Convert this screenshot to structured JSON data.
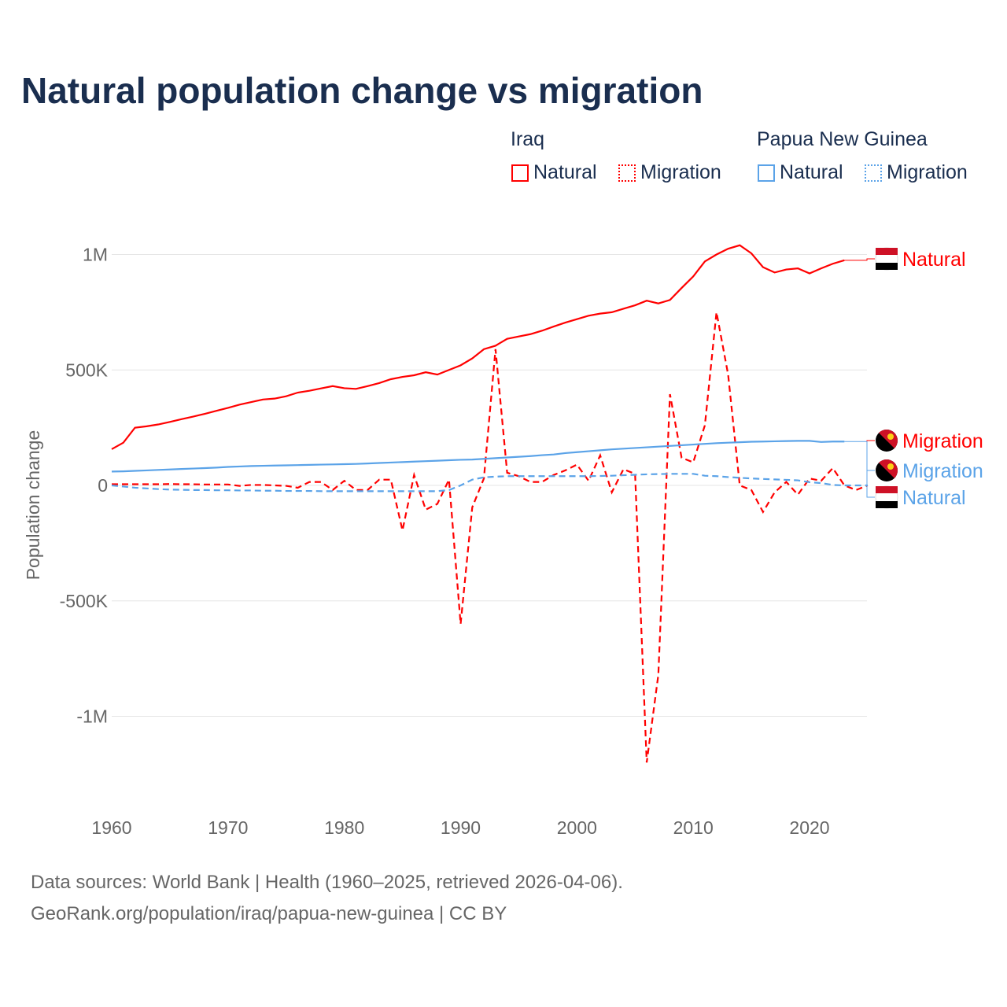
{
  "title": "Natural population change vs migration",
  "legend": {
    "groups": [
      {
        "name": "Iraq",
        "items": [
          "Natural",
          "Migration"
        ]
      },
      {
        "name": "Papua New Guinea",
        "items": [
          "Natural",
          "Migration"
        ]
      }
    ]
  },
  "colors": {
    "iraq": "#ff0000",
    "png": "#5ba3e8",
    "grid": "#e6e6e6",
    "text": "#1a2e4f"
  },
  "footer": {
    "line1": "Data sources: World Bank | Health (1960–2025, retrieved 2026-04-06).",
    "line2": "GeoRank.org/population/iraq/papua-new-guinea | CC BY"
  },
  "chart_data": {
    "type": "line",
    "title": "Natural population change vs migration",
    "xlabel": "",
    "ylabel": "Population change",
    "xlim": [
      1960,
      2025
    ],
    "ylim": [
      -1200000,
      1050000
    ],
    "x_ticks": [
      1960,
      1970,
      1980,
      1990,
      2000,
      2010,
      2020
    ],
    "y_ticks": [
      {
        "v": 1000000,
        "label": "1M"
      },
      {
        "v": 500000,
        "label": "500K"
      },
      {
        "v": 0,
        "label": "0"
      },
      {
        "v": -500000,
        "label": "-500K"
      },
      {
        "v": -1000000,
        "label": "-1M"
      }
    ],
    "units": "thousands",
    "series": [
      {
        "name": "Iraq Natural",
        "end_label": "Natural",
        "color": "#ff0000",
        "dash": false,
        "start": 1960,
        "values": [
          157,
          185,
          250,
          256,
          264,
          275,
          287,
          298,
          310,
          323,
          336,
          350,
          361,
          372,
          376,
          386,
          402,
          410,
          420,
          430,
          421,
          418,
          430,
          443,
          460,
          470,
          477,
          490,
          480,
          500,
          520,
          550,
          590,
          605,
          635,
          645,
          655,
          670,
          688,
          705,
          720,
          735,
          744,
          750,
          765,
          780,
          800,
          788,
          803,
          855,
          905,
          970,
          1000,
          1025,
          1040,
          1005,
          945,
          922,
          935,
          940,
          918,
          940,
          960,
          975
        ]
      },
      {
        "name": "Iraq Migration",
        "end_label": "Migration",
        "color": "#ff0000",
        "dash": true,
        "start": 1960,
        "values": [
          5,
          5,
          5,
          5,
          5,
          6,
          5,
          5,
          4,
          4,
          4,
          -2,
          2,
          2,
          0,
          -2,
          -10,
          15,
          15,
          -20,
          20,
          -20,
          -20,
          25,
          25,
          -195,
          45,
          -105,
          -80,
          25,
          -600,
          -95,
          30,
          590,
          55,
          40,
          15,
          15,
          45,
          65,
          90,
          20,
          130,
          -30,
          70,
          50,
          -1200,
          -820,
          395,
          120,
          100,
          260,
          750,
          480,
          0,
          -20,
          -115,
          -30,
          15,
          -40,
          30,
          20,
          75,
          0,
          -20,
          0
        ]
      },
      {
        "name": "Papua New Guinea Natural",
        "end_label": "Natural",
        "color": "#5ba3e8",
        "dash": false,
        "start": 1960,
        "values": [
          60,
          61,
          63,
          65,
          67,
          69,
          71,
          73,
          75,
          77,
          80,
          82,
          84,
          85,
          86,
          87,
          88,
          89,
          90,
          91,
          92,
          93,
          95,
          97,
          99,
          101,
          103,
          105,
          107,
          109,
          111,
          112,
          115,
          118,
          121,
          124,
          127,
          131,
          134,
          140,
          144,
          148,
          152,
          156,
          159,
          162,
          165,
          168,
          171,
          174,
          177,
          180,
          183,
          185,
          187,
          189,
          190,
          191,
          192,
          193,
          193,
          188,
          190,
          190
        ]
      },
      {
        "name": "Papua New Guinea Migration",
        "end_label": "Migration",
        "color": "#5ba3e8",
        "dash": true,
        "start": 1960,
        "values": [
          0,
          -5,
          -10,
          -13,
          -16,
          -18,
          -19,
          -20,
          -20,
          -21,
          -21,
          -22,
          -22,
          -23,
          -23,
          -24,
          -24,
          -24,
          -25,
          -25,
          -25,
          -25,
          -25,
          -25,
          -25,
          -25,
          -25,
          -25,
          -25,
          -20,
          0,
          25,
          35,
          38,
          40,
          40,
          40,
          40,
          40,
          40,
          40,
          40,
          41,
          42,
          44,
          46,
          48,
          49,
          50,
          50,
          50,
          42,
          40,
          36,
          33,
          30,
          28,
          26,
          24,
          22,
          14,
          10,
          2,
          0,
          0,
          0
        ]
      }
    ]
  }
}
